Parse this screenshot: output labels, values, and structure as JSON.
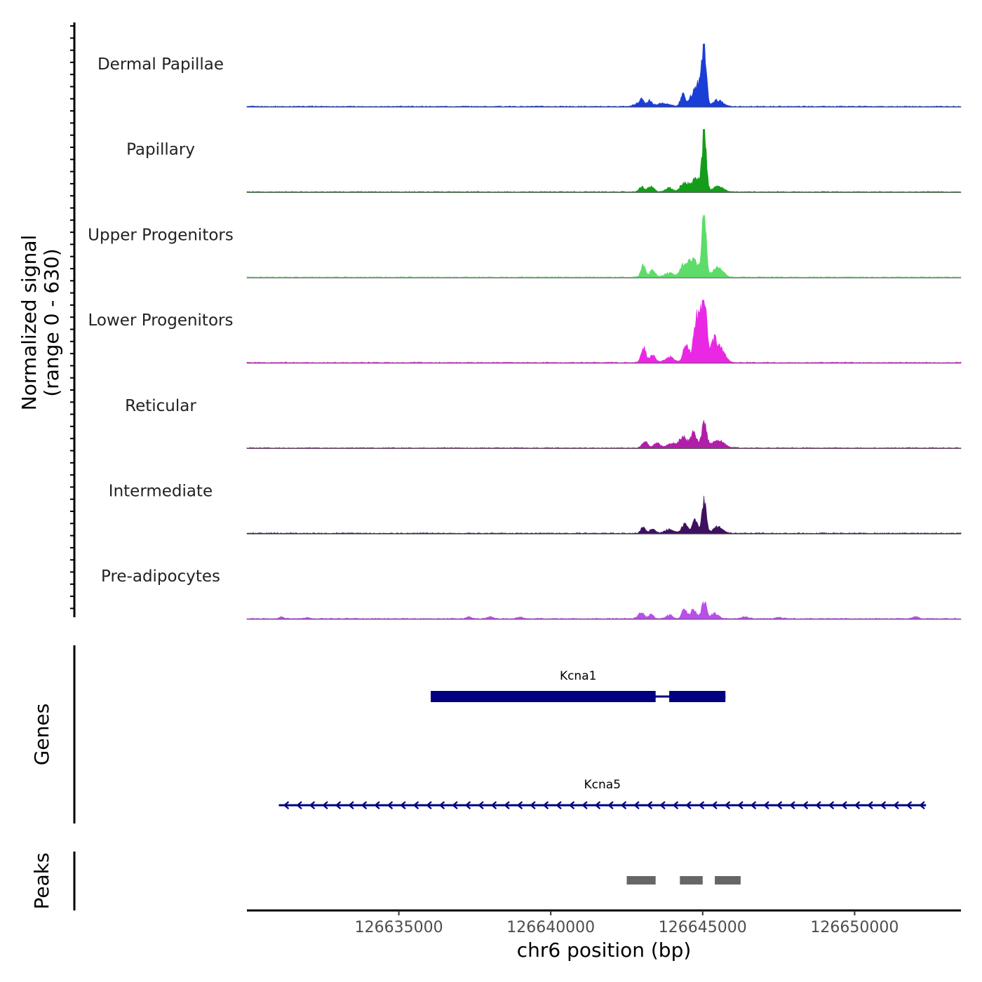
{
  "chart_data": {
    "type": "area",
    "title": "",
    "ylabel_lines": [
      "Normalized signal",
      "(range 0 - 630)"
    ],
    "xlabel": "chr6 position (bp)",
    "xlim": [
      126630000,
      126653500
    ],
    "xticks": [
      126635000,
      126640000,
      126645000,
      126650000
    ],
    "xtick_labels": [
      "126635000",
      "126640000",
      "126645000",
      "126650000"
    ],
    "signal_range": [
      0,
      630
    ],
    "tracks": [
      {
        "name": "Dermal Papillae",
        "color": "#1a3fd6",
        "peaks": [
          [
            126645050,
            0.93,
            70
          ],
          [
            126644900,
            0.24,
            120
          ],
          [
            126644350,
            0.2,
            80
          ],
          [
            126644800,
            0.18,
            110
          ],
          [
            126645500,
            0.1,
            160
          ],
          [
            126644600,
            0.12,
            80
          ],
          [
            126643000,
            0.12,
            70
          ],
          [
            126643250,
            0.1,
            70
          ],
          [
            126643700,
            0.05,
            200
          ],
          [
            126642850,
            0.04,
            120
          ]
        ]
      },
      {
        "name": "Papillary",
        "color": "#159c1a",
        "peaks": [
          [
            126645050,
            0.93,
            70
          ],
          [
            126644800,
            0.23,
            110
          ],
          [
            126645500,
            0.1,
            160
          ],
          [
            126644350,
            0.13,
            90
          ],
          [
            126643300,
            0.09,
            100
          ],
          [
            126643000,
            0.08,
            90
          ],
          [
            126643900,
            0.06,
            130
          ],
          [
            126644550,
            0.1,
            100
          ]
        ]
      },
      {
        "name": "Upper Progenitors",
        "color": "#5ddc69",
        "peaks": [
          [
            126645050,
            0.98,
            65
          ],
          [
            126644700,
            0.25,
            100
          ],
          [
            126644350,
            0.2,
            90
          ],
          [
            126644950,
            0.18,
            100
          ],
          [
            126645500,
            0.15,
            170
          ],
          [
            126643050,
            0.19,
            80
          ],
          [
            126643350,
            0.13,
            80
          ],
          [
            126643900,
            0.07,
            160
          ],
          [
            126644550,
            0.14,
            90
          ]
        ]
      },
      {
        "name": "Lower Progenitors",
        "color": "#ea28e3",
        "peaks": [
          [
            126645050,
            0.8,
            70
          ],
          [
            126644800,
            0.53,
            90
          ],
          [
            126644450,
            0.28,
            80
          ],
          [
            126645050,
            0.2,
            350
          ],
          [
            126645400,
            0.24,
            110
          ],
          [
            126645650,
            0.13,
            120
          ],
          [
            126643050,
            0.24,
            80
          ],
          [
            126643350,
            0.11,
            100
          ],
          [
            126643900,
            0.08,
            160
          ],
          [
            126644950,
            0.3,
            90
          ]
        ]
      },
      {
        "name": "Reticular",
        "color": "#b01fa8",
        "peaks": [
          [
            126645050,
            0.38,
            80
          ],
          [
            126644700,
            0.25,
            110
          ],
          [
            126644350,
            0.18,
            100
          ],
          [
            126645500,
            0.13,
            200
          ],
          [
            126643100,
            0.11,
            90
          ],
          [
            126643500,
            0.08,
            100
          ],
          [
            126644000,
            0.07,
            160
          ]
        ]
      },
      {
        "name": "Intermediate",
        "color": "#3e1160",
        "peaks": [
          [
            126645050,
            0.52,
            70
          ],
          [
            126644750,
            0.21,
            100
          ],
          [
            126644400,
            0.15,
            90
          ],
          [
            126645500,
            0.1,
            160
          ],
          [
            126643050,
            0.1,
            80
          ],
          [
            126643350,
            0.08,
            80
          ],
          [
            126643900,
            0.06,
            160
          ]
        ]
      },
      {
        "name": "Pre-adipocytes",
        "color": "#b84fe8",
        "peaks": [
          [
            126645050,
            0.27,
            80
          ],
          [
            126644400,
            0.17,
            80
          ],
          [
            126644700,
            0.14,
            100
          ],
          [
            126645400,
            0.08,
            120
          ],
          [
            126643000,
            0.08,
            80
          ],
          [
            126643300,
            0.07,
            80
          ],
          [
            126643900,
            0.05,
            120
          ],
          [
            126642900,
            0.04,
            80
          ],
          [
            126631150,
            0.03,
            70
          ],
          [
            126632000,
            0.02,
            80
          ],
          [
            126637300,
            0.03,
            80
          ],
          [
            126638000,
            0.03,
            100
          ],
          [
            126639000,
            0.02,
            100
          ],
          [
            126646400,
            0.03,
            100
          ],
          [
            126647500,
            0.02,
            100
          ],
          [
            126652000,
            0.03,
            100
          ]
        ]
      }
    ],
    "genes_label": "Genes",
    "genes": [
      {
        "name": "Kcna1",
        "start": 126636050,
        "end": 126645750,
        "strand": "-",
        "color": "#000080",
        "exons": [
          [
            126636050,
            126643450
          ],
          [
            126643900,
            126645750
          ]
        ]
      },
      {
        "name": "Kcna5",
        "start": 126631050,
        "end": 126652350,
        "strand": "-",
        "color": "#000080",
        "exons": []
      }
    ],
    "peaks_label": "Peaks",
    "peaks": [
      [
        126642500,
        126643450
      ],
      [
        126644250,
        126645000
      ],
      [
        126645400,
        126646250
      ]
    ],
    "peaks_color": "#666666"
  }
}
